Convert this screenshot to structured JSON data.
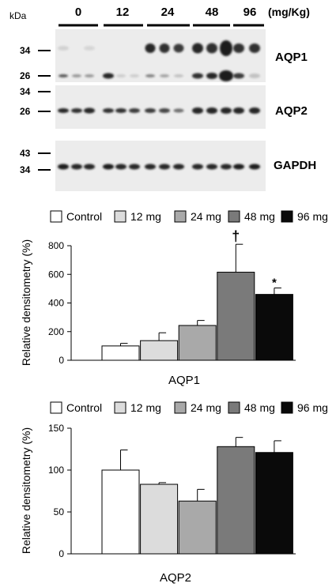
{
  "blot": {
    "kda_label": "kDa",
    "dose_labels": [
      "0",
      "12",
      "24",
      "48",
      "96"
    ],
    "unit_label": "(mg/Kg)",
    "panels": [
      {
        "protein": "AQP1",
        "markers": [
          "34",
          "26"
        ]
      },
      {
        "protein": "AQP2",
        "markers": [
          "34",
          "26"
        ]
      },
      {
        "protein": "GAPDH",
        "markers": [
          "43",
          "34"
        ]
      }
    ]
  },
  "colors": {
    "control": "#ffffff",
    "mg12": "#dcdcdc",
    "mg24": "#a9a9a9",
    "mg48": "#7a7a7a",
    "mg96": "#0a0a0a",
    "membrane": "#ececec",
    "band": "#1a1a1a"
  },
  "chart_data": [
    {
      "type": "bar",
      "categories": [
        "Control",
        "12 mg",
        "24 mg",
        "48 mg",
        "96 mg"
      ],
      "values": [
        100,
        137,
        243,
        615,
        460
      ],
      "errors": [
        18,
        55,
        35,
        195,
        45
      ],
      "annotations": [
        "",
        "",
        "",
        "†",
        "*"
      ],
      "title": "",
      "xlabel": "AQP1",
      "ylabel": "Relative densitometry (%)",
      "ylim": [
        0,
        800
      ],
      "yticks": [
        0,
        200,
        400,
        600,
        800
      ],
      "legend": [
        "Control",
        "12 mg",
        "24 mg",
        "48 mg",
        "96 mg"
      ],
      "legend_position": "top"
    },
    {
      "type": "bar",
      "categories": [
        "Control",
        "12 mg",
        "24 mg",
        "48 mg",
        "96 mg"
      ],
      "values": [
        100,
        83,
        63,
        128,
        121
      ],
      "errors": [
        24,
        2,
        14,
        11,
        14
      ],
      "annotations": [
        "",
        "",
        "",
        "",
        ""
      ],
      "title": "",
      "xlabel": "AQP2",
      "ylabel": "Relative densitometry (%)",
      "ylim": [
        0,
        150
      ],
      "yticks": [
        0,
        50,
        100,
        150
      ],
      "legend": [
        "Control",
        "12 mg",
        "24 mg",
        "48 mg",
        "96 mg"
      ],
      "legend_position": "top"
    }
  ]
}
